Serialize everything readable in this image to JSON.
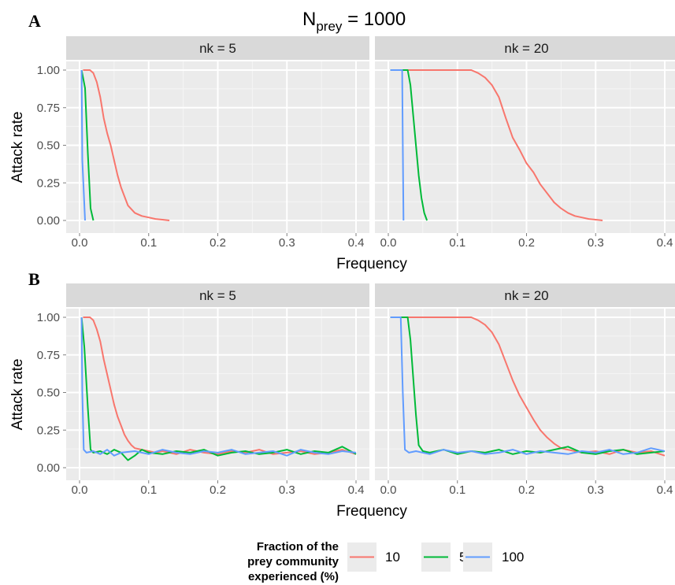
{
  "figure": {
    "title_main": "N",
    "title_sub": "prey",
    "title_tail": " = 1000"
  },
  "legend": {
    "title_lines": [
      "Fraction of the",
      "prey community",
      "experienced (%)"
    ],
    "entries": [
      {
        "label": "10",
        "color": "#F8766D"
      },
      {
        "label": "50",
        "color": "#00BA38"
      },
      {
        "label": "100",
        "color": "#619CFF"
      }
    ]
  },
  "chart_data": [
    {
      "panel": "A",
      "type": "line",
      "facets": [
        {
          "strip": "nk = 5",
          "series": [
            {
              "name": "10",
              "color": "#F8766D",
              "x": [
                0.005,
                0.015,
                0.02,
                0.025,
                0.03,
                0.035,
                0.04,
                0.045,
                0.05,
                0.055,
                0.06,
                0.065,
                0.07,
                0.08,
                0.09,
                0.1,
                0.11,
                0.12,
                0.13
              ],
              "y": [
                1.0,
                1.0,
                0.98,
                0.92,
                0.82,
                0.68,
                0.58,
                0.5,
                0.4,
                0.3,
                0.22,
                0.16,
                0.1,
                0.05,
                0.03,
                0.02,
                0.01,
                0.005,
                0.0
              ]
            },
            {
              "name": "50",
              "color": "#00BA38",
              "x": [
                0.003,
                0.008,
                0.012,
                0.016,
                0.02
              ],
              "y": [
                1.0,
                0.88,
                0.45,
                0.08,
                0.0
              ]
            },
            {
              "name": "100",
              "color": "#619CFF",
              "x": [
                0.003,
                0.004,
                0.008
              ],
              "y": [
                1.0,
                0.4,
                0.0
              ]
            }
          ]
        },
        {
          "strip": "nk = 20",
          "series": [
            {
              "name": "10",
              "color": "#F8766D",
              "x": [
                0.003,
                0.12,
                0.13,
                0.14,
                0.15,
                0.16,
                0.17,
                0.18,
                0.19,
                0.2,
                0.21,
                0.22,
                0.23,
                0.24,
                0.25,
                0.26,
                0.27,
                0.28,
                0.29,
                0.3,
                0.31
              ],
              "y": [
                1.0,
                1.0,
                0.98,
                0.95,
                0.9,
                0.82,
                0.68,
                0.55,
                0.47,
                0.38,
                0.32,
                0.24,
                0.18,
                0.12,
                0.08,
                0.05,
                0.03,
                0.02,
                0.01,
                0.005,
                0.0
              ]
            },
            {
              "name": "50",
              "color": "#00BA38",
              "x": [
                0.003,
                0.028,
                0.032,
                0.036,
                0.04,
                0.044,
                0.048,
                0.052,
                0.056
              ],
              "y": [
                1.0,
                1.0,
                0.9,
                0.7,
                0.5,
                0.3,
                0.15,
                0.05,
                0.0
              ]
            },
            {
              "name": "100",
              "color": "#619CFF",
              "x": [
                0.003,
                0.02,
                0.021,
                0.022
              ],
              "y": [
                1.0,
                1.0,
                0.5,
                0.0
              ]
            }
          ]
        }
      ],
      "xlabel": "Frequency",
      "ylabel": "Attack rate",
      "xlim": [
        0.0,
        0.4
      ],
      "ylim": [
        0.0,
        1.0
      ],
      "xticks": [
        "0.0",
        "0.1",
        "0.2",
        "0.3",
        "0.4"
      ],
      "yticks": [
        "0.00",
        "0.25",
        "0.50",
        "0.75",
        "1.00"
      ]
    },
    {
      "panel": "B",
      "type": "line",
      "facets": [
        {
          "strip": "nk = 5",
          "series": [
            {
              "name": "10",
              "color": "#F8766D",
              "x": [
                0.005,
                0.015,
                0.02,
                0.025,
                0.03,
                0.035,
                0.04,
                0.045,
                0.05,
                0.055,
                0.06,
                0.065,
                0.07,
                0.075,
                0.08,
                0.09,
                0.1,
                0.11,
                0.12,
                0.14,
                0.16,
                0.18,
                0.2,
                0.22,
                0.24,
                0.26,
                0.28,
                0.3,
                0.32,
                0.34,
                0.36,
                0.38,
                0.4
              ],
              "y": [
                1.0,
                1.0,
                0.98,
                0.92,
                0.84,
                0.72,
                0.62,
                0.52,
                0.42,
                0.34,
                0.28,
                0.22,
                0.18,
                0.15,
                0.13,
                0.12,
                0.11,
                0.1,
                0.11,
                0.09,
                0.12,
                0.1,
                0.09,
                0.11,
                0.1,
                0.12,
                0.09,
                0.1,
                0.11,
                0.09,
                0.1,
                0.12,
                0.09
              ]
            },
            {
              "name": "50",
              "color": "#00BA38",
              "x": [
                0.003,
                0.007,
                0.012,
                0.016,
                0.02,
                0.03,
                0.04,
                0.05,
                0.06,
                0.07,
                0.08,
                0.09,
                0.1,
                0.12,
                0.14,
                0.16,
                0.18,
                0.2,
                0.22,
                0.24,
                0.26,
                0.28,
                0.3,
                0.32,
                0.34,
                0.36,
                0.38,
                0.4
              ],
              "y": [
                1.0,
                0.8,
                0.4,
                0.12,
                0.1,
                0.11,
                0.09,
                0.12,
                0.1,
                0.05,
                0.08,
                0.12,
                0.1,
                0.09,
                0.11,
                0.1,
                0.12,
                0.08,
                0.1,
                0.11,
                0.09,
                0.1,
                0.12,
                0.09,
                0.11,
                0.1,
                0.14,
                0.09
              ]
            },
            {
              "name": "100",
              "color": "#619CFF",
              "x": [
                0.003,
                0.004,
                0.006,
                0.01,
                0.02,
                0.03,
                0.04,
                0.05,
                0.06,
                0.08,
                0.1,
                0.12,
                0.14,
                0.16,
                0.18,
                0.2,
                0.22,
                0.24,
                0.26,
                0.28,
                0.3,
                0.32,
                0.34,
                0.36,
                0.38,
                0.4
              ],
              "y": [
                1.0,
                0.5,
                0.12,
                0.1,
                0.11,
                0.09,
                0.12,
                0.08,
                0.1,
                0.11,
                0.09,
                0.12,
                0.1,
                0.09,
                0.11,
                0.1,
                0.12,
                0.09,
                0.1,
                0.11,
                0.08,
                0.12,
                0.1,
                0.09,
                0.11,
                0.1
              ]
            }
          ]
        },
        {
          "strip": "nk = 20",
          "series": [
            {
              "name": "10",
              "color": "#F8766D",
              "x": [
                0.003,
                0.12,
                0.13,
                0.14,
                0.15,
                0.16,
                0.17,
                0.18,
                0.19,
                0.2,
                0.21,
                0.22,
                0.23,
                0.24,
                0.25,
                0.26,
                0.28,
                0.3,
                0.32,
                0.34,
                0.36,
                0.38,
                0.4
              ],
              "y": [
                1.0,
                1.0,
                0.98,
                0.95,
                0.9,
                0.82,
                0.7,
                0.58,
                0.48,
                0.4,
                0.32,
                0.25,
                0.2,
                0.16,
                0.13,
                0.12,
                0.1,
                0.11,
                0.09,
                0.12,
                0.1,
                0.11,
                0.08
              ]
            },
            {
              "name": "50",
              "color": "#00BA38",
              "x": [
                0.003,
                0.028,
                0.032,
                0.036,
                0.04,
                0.044,
                0.05,
                0.06,
                0.08,
                0.1,
                0.12,
                0.14,
                0.16,
                0.18,
                0.2,
                0.22,
                0.24,
                0.26,
                0.28,
                0.3,
                0.32,
                0.34,
                0.36,
                0.38,
                0.4
              ],
              "y": [
                1.0,
                1.0,
                0.85,
                0.6,
                0.35,
                0.15,
                0.11,
                0.1,
                0.12,
                0.09,
                0.11,
                0.1,
                0.12,
                0.09,
                0.11,
                0.1,
                0.12,
                0.14,
                0.1,
                0.09,
                0.11,
                0.12,
                0.09,
                0.1,
                0.11
              ]
            },
            {
              "name": "100",
              "color": "#619CFF",
              "x": [
                0.003,
                0.018,
                0.021,
                0.024,
                0.03,
                0.04,
                0.06,
                0.08,
                0.1,
                0.12,
                0.14,
                0.16,
                0.18,
                0.2,
                0.22,
                0.24,
                0.26,
                0.28,
                0.3,
                0.32,
                0.34,
                0.36,
                0.38,
                0.4
              ],
              "y": [
                1.0,
                1.0,
                0.5,
                0.12,
                0.1,
                0.11,
                0.09,
                0.12,
                0.1,
                0.11,
                0.09,
                0.1,
                0.12,
                0.09,
                0.11,
                0.1,
                0.09,
                0.11,
                0.1,
                0.12,
                0.09,
                0.1,
                0.13,
                0.11
              ]
            }
          ]
        }
      ],
      "xlabel": "Frequency",
      "ylabel": "Attack rate",
      "xlim": [
        0.0,
        0.4
      ],
      "ylim": [
        0.0,
        1.0
      ],
      "xticks": [
        "0.0",
        "0.1",
        "0.2",
        "0.3",
        "0.4"
      ],
      "yticks": [
        "0.00",
        "0.25",
        "0.50",
        "0.75",
        "1.00"
      ]
    }
  ]
}
